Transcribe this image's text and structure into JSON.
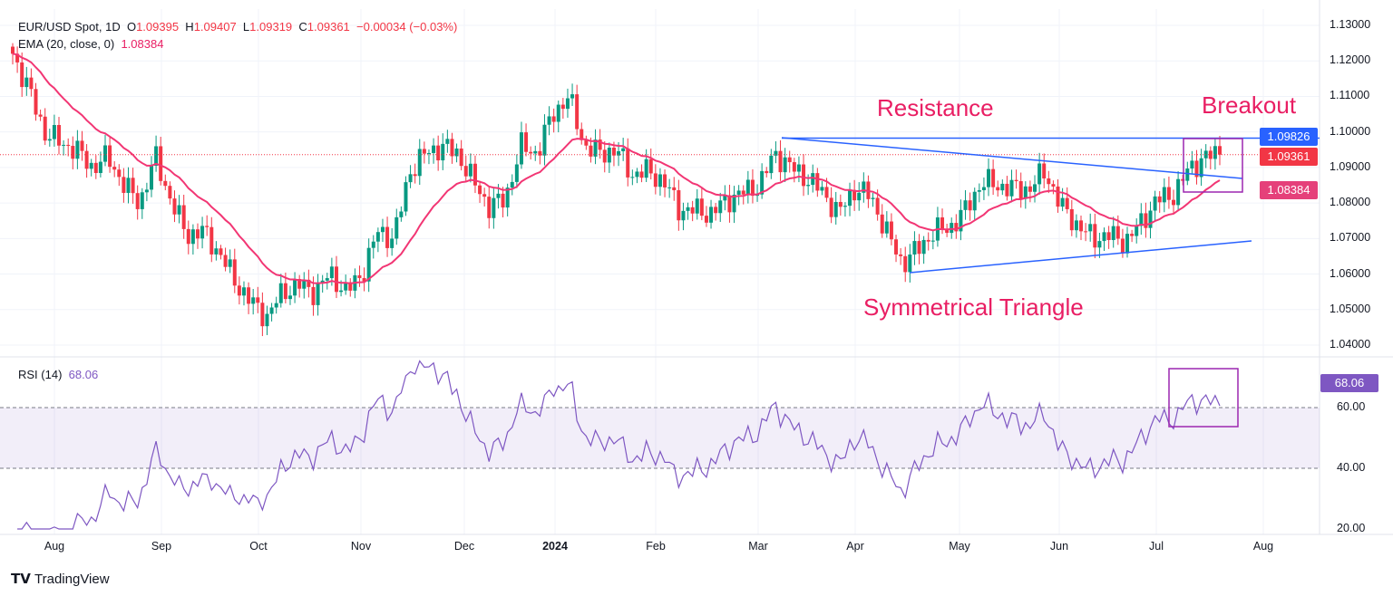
{
  "legend": {
    "symbol": "EUR/USD Spot, 1D",
    "o_label": "O",
    "o": "1.09395",
    "h_label": "H",
    "h": "1.09407",
    "l_label": "L",
    "l": "1.09319",
    "c_label": "C",
    "c": "1.09361",
    "change": "−0.00034 (−0.03%)",
    "ema_label": "EMA (20, close, 0)",
    "ema_value": "1.08384",
    "rsi_label": "RSI (14)",
    "rsi_value": "68.06"
  },
  "annotations": {
    "resistance": "Resistance",
    "breakout": "Breakout",
    "triangle": "Symmetrical Triangle"
  },
  "price_tags": {
    "resistance": "1.09826",
    "last": "1.09361",
    "ema": "1.08384",
    "rsi": "68.06"
  },
  "colors": {
    "up": "#089981",
    "down": "#f23645",
    "ema": "#f23674",
    "rsi": "#7e57c2",
    "lines": "#2962ff",
    "box": "#9c27b0",
    "text_accent": "#e91e63"
  },
  "branding": "TradingView",
  "chart_data": {
    "type": "candlestick",
    "title": "EUR/USD Spot, 1D",
    "y_ticks": [
      "1.13000",
      "1.12000",
      "1.11000",
      "1.10000",
      "1.09000",
      "1.08000",
      "1.07000",
      "1.06000",
      "1.05000",
      "1.04000"
    ],
    "ylim": [
      1.037,
      1.133
    ],
    "rsi_ticks": [
      "60.00",
      "40.00",
      "20.00"
    ],
    "x_ticks": [
      "Aug",
      "Sep",
      "Oct",
      "Nov",
      "Dec",
      "2024",
      "Feb",
      "Mar",
      "Apr",
      "May",
      "Jun",
      "Jul",
      "Aug"
    ],
    "close_anchors": [
      1.122,
      1.112,
      1.1,
      1.097,
      1.095,
      1.09,
      1.093,
      1.085,
      1.08,
      1.093,
      1.08,
      1.071,
      1.072,
      1.066,
      1.058,
      1.052,
      1.048,
      1.055,
      1.057,
      1.055,
      1.06,
      1.055,
      1.06,
      1.072,
      1.07,
      1.089,
      1.094,
      1.096,
      1.094,
      1.086,
      1.079,
      1.081,
      1.096,
      1.094,
      1.105,
      1.11,
      1.096,
      1.094,
      1.095,
      1.088,
      1.089,
      1.086,
      1.078,
      1.078,
      1.077,
      1.081,
      1.083,
      1.085,
      1.094,
      1.09,
      1.087,
      1.083,
      1.077,
      1.084,
      1.082,
      1.072,
      1.063,
      1.067,
      1.072,
      1.073,
      1.078,
      1.086,
      1.085,
      1.084,
      1.084,
      1.089,
      1.079,
      1.074,
      1.07,
      1.071,
      1.069,
      1.074,
      1.081,
      1.082,
      1.089,
      1.093,
      1.0936
    ],
    "ema_period": 20,
    "rsi_period": 14,
    "resistance_level": 1.09826,
    "rsi_levels": [
      60,
      40
    ]
  }
}
